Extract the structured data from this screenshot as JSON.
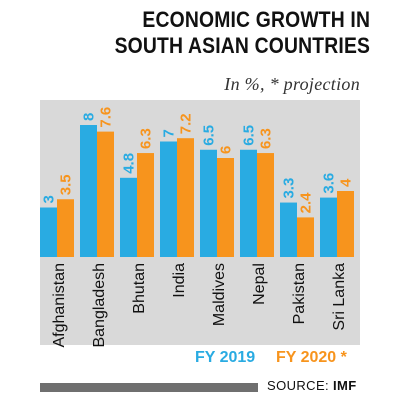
{
  "chart_data": {
    "type": "bar",
    "title_line1": "ECONOMIC GROWTH IN",
    "title_line2": "SOUTH ASIAN COUNTRIES",
    "subtitle": "In %, * projection",
    "categories": [
      "Afghanistan",
      "Bangladesh",
      "Bhutan",
      "India",
      "Maldives",
      "Nepal",
      "Pakistan",
      "Sri Lanka"
    ],
    "series": [
      {
        "name": "FY 2019",
        "values": [
          3,
          8,
          4.8,
          7,
          6.5,
          6.5,
          3.3,
          3.6
        ],
        "labels": [
          "3",
          "8",
          "4.8",
          "7",
          "6.5",
          "6.5",
          "3.3",
          "3.6"
        ],
        "color": "#29abe2"
      },
      {
        "name": "FY 2020 *",
        "values": [
          3.5,
          7.6,
          6.3,
          7.2,
          6,
          6.3,
          2.4,
          4
        ],
        "labels": [
          "3.5",
          "7.6",
          "6.3",
          "7.2",
          "6",
          "6.3",
          "2.4",
          "4"
        ],
        "color": "#f7941d"
      }
    ],
    "ylim": [
      0,
      8
    ],
    "background": "#d9d9d9"
  },
  "source": {
    "label": "SOURCE:",
    "name": "IMF"
  }
}
